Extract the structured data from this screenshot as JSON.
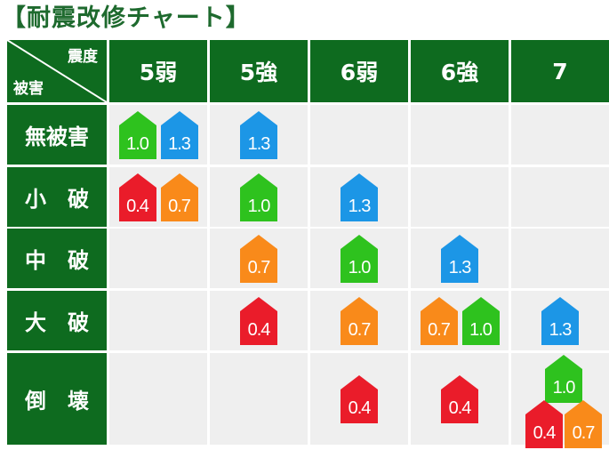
{
  "title": "【耐震改修チャート】",
  "corner": {
    "top": "震度",
    "bottom": "被害"
  },
  "columns": [
    "5弱",
    "5強",
    "6弱",
    "6強",
    "7"
  ],
  "rows": [
    "無被害",
    "小　破",
    "中　破",
    "大　破",
    "倒　壊"
  ],
  "colors": {
    "green": "#2ec21e",
    "blue": "#1c96e6",
    "red": "#ea1c2a",
    "orange": "#f98a1a",
    "header": "#0e6b1f",
    "cell": "#efefef"
  },
  "badges": [
    {
      "row": 0,
      "col": 0,
      "value": "1.0",
      "color": "green"
    },
    {
      "row": 0,
      "col": 0,
      "value": "1.3",
      "color": "blue"
    },
    {
      "row": 0,
      "col": 1,
      "value": "1.3",
      "color": "blue"
    },
    {
      "row": 1,
      "col": 0,
      "value": "0.4",
      "color": "red"
    },
    {
      "row": 1,
      "col": 0,
      "value": "0.7",
      "color": "orange"
    },
    {
      "row": 1,
      "col": 1,
      "value": "1.0",
      "color": "green"
    },
    {
      "row": 1,
      "col": 2,
      "value": "1.3",
      "color": "blue"
    },
    {
      "row": 2,
      "col": 1,
      "value": "0.7",
      "color": "orange"
    },
    {
      "row": 2,
      "col": 2,
      "value": "1.0",
      "color": "green"
    },
    {
      "row": 2,
      "col": 3,
      "value": "1.3",
      "color": "blue"
    },
    {
      "row": 3,
      "col": 1,
      "value": "0.4",
      "color": "red"
    },
    {
      "row": 3,
      "col": 2,
      "value": "0.7",
      "color": "orange"
    },
    {
      "row": 3,
      "col": 3,
      "value": "0.7",
      "color": "orange"
    },
    {
      "row": 3,
      "col": 3,
      "value": "1.0",
      "color": "green"
    },
    {
      "row": 3,
      "col": 4,
      "value": "1.3",
      "color": "blue"
    },
    {
      "row": 4,
      "col": 2,
      "value": "0.4",
      "color": "red"
    },
    {
      "row": 4,
      "col": 3,
      "value": "0.4",
      "color": "red"
    },
    {
      "row": 4,
      "col": 4,
      "value": "1.0",
      "color": "green"
    },
    {
      "row": 4,
      "col": 4,
      "value": "0.4",
      "color": "red"
    },
    {
      "row": 4,
      "col": 4,
      "value": "0.7",
      "color": "orange"
    }
  ]
}
